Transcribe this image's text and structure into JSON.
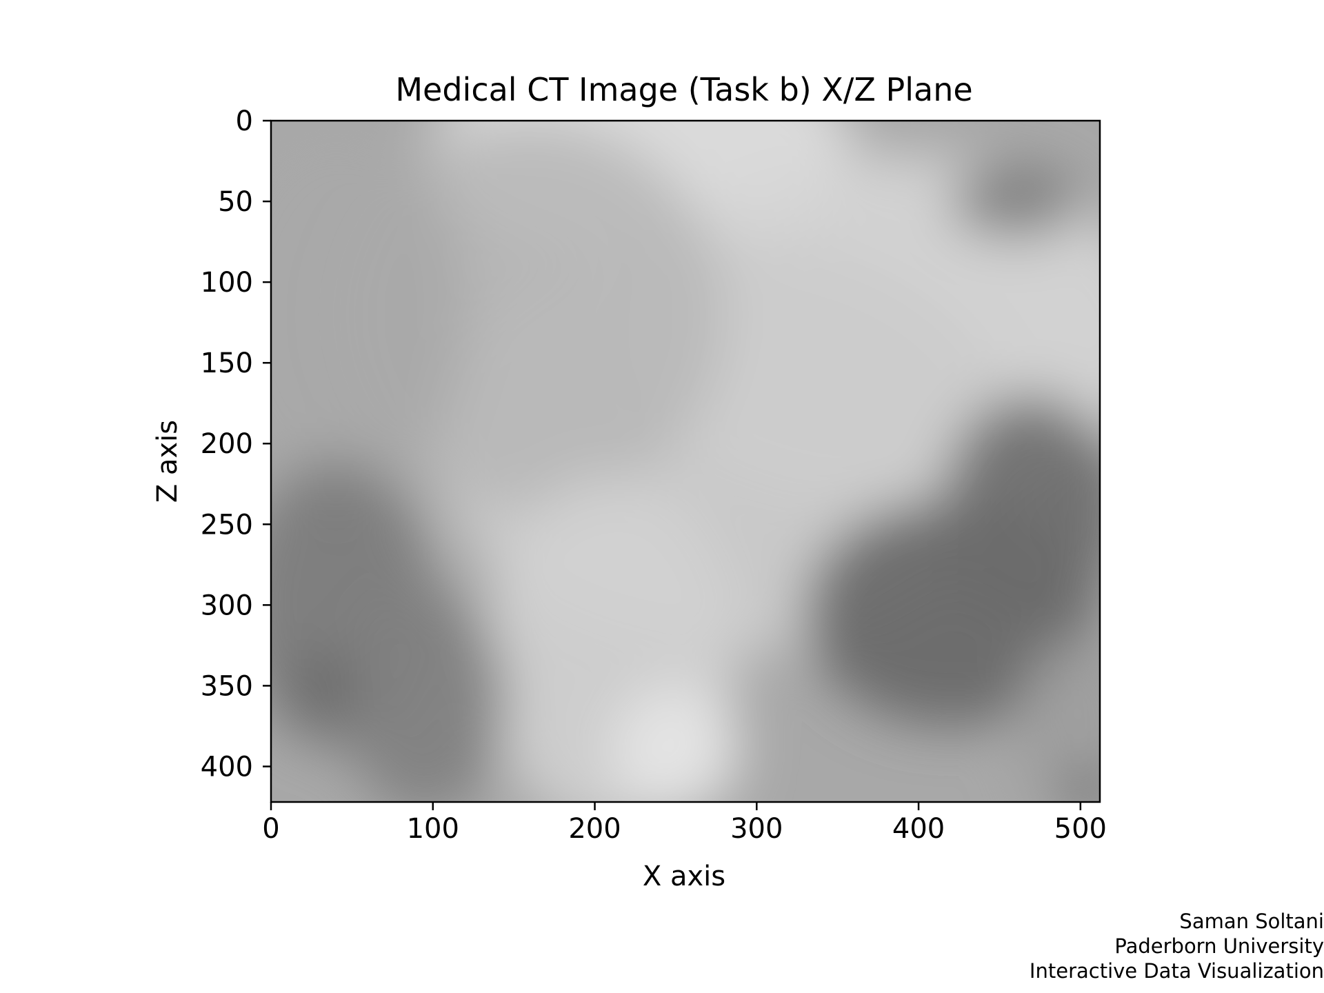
{
  "chart_data": {
    "type": "heatmap",
    "title": "Medical CT Image (Task b) X/Z Plane",
    "xlabel": "X axis",
    "ylabel": "Z axis",
    "xlim": [
      0,
      512
    ],
    "ylim": [
      422,
      0
    ],
    "x_ticks": [
      0,
      100,
      200,
      300,
      400,
      500
    ],
    "y_ticks": [
      0,
      50,
      100,
      150,
      200,
      250,
      300,
      350,
      400
    ],
    "colormap": "gray",
    "grid": false,
    "legend": "none",
    "regions": [
      {
        "x": 230,
        "z": 15,
        "level": 0.88,
        "rx": 130,
        "rz": 70
      },
      {
        "x": 380,
        "z": 130,
        "level": 0.84,
        "rx": 170,
        "rz": 110
      },
      {
        "x": 280,
        "z": 200,
        "level": 0.8,
        "rx": 180,
        "rz": 130
      },
      {
        "x": 160,
        "z": 120,
        "level": 0.72,
        "rx": 120,
        "rz": 120
      },
      {
        "x": 210,
        "z": 330,
        "level": 0.82,
        "rx": 80,
        "rz": 110
      },
      {
        "x": 250,
        "z": 390,
        "level": 0.9,
        "rx": 40,
        "rz": 40
      },
      {
        "x": 40,
        "z": 120,
        "level": 0.66,
        "rx": 80,
        "rz": 120
      },
      {
        "x": 40,
        "z": 300,
        "level": 0.48,
        "rx": 60,
        "rz": 90
      },
      {
        "x": 35,
        "z": 350,
        "level": 0.38,
        "rx": 18,
        "rz": 18
      },
      {
        "x": 95,
        "z": 360,
        "level": 0.5,
        "rx": 50,
        "rz": 70
      },
      {
        "x": 420,
        "z": 305,
        "level": 0.4,
        "rx": 90,
        "rz": 70
      },
      {
        "x": 470,
        "z": 240,
        "level": 0.42,
        "rx": 55,
        "rz": 70
      },
      {
        "x": 460,
        "z": 50,
        "level": 0.48,
        "rx": 40,
        "rz": 22
      },
      {
        "x": 500,
        "z": 380,
        "level": 0.62,
        "rx": 40,
        "rz": 60
      },
      {
        "x": 505,
        "z": 415,
        "level": 0.35,
        "rx": 12,
        "rz": 14
      }
    ]
  },
  "credits": {
    "author": "Saman Soltani",
    "affiliation": "Paderborn University",
    "course": "Interactive Data Visualization"
  }
}
